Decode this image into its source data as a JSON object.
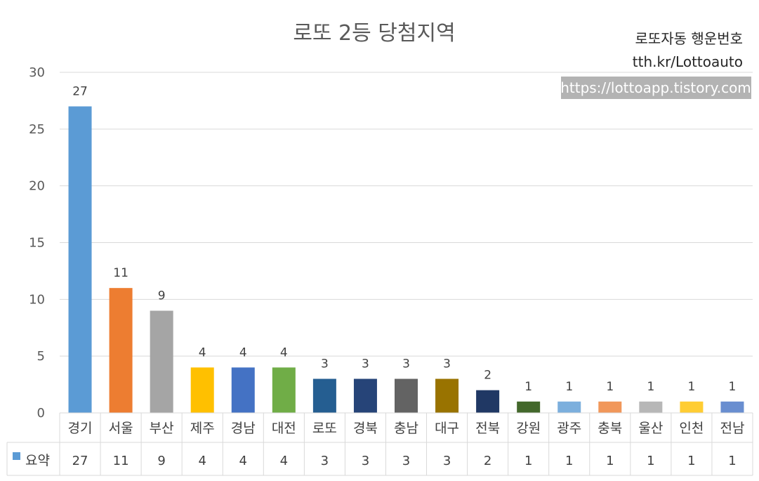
{
  "watermark": {
    "line1": "로또자동 행운번호",
    "line2": "tth.kr/Lottoauto",
    "url": "https://lottoapp.tistory.com"
  },
  "chart_data": {
    "type": "bar",
    "title": "로또 2등 당첨지역",
    "categories": [
      "경기",
      "서울",
      "부산",
      "제주",
      "경남",
      "대전",
      "로또",
      "경북",
      "충남",
      "대구",
      "전북",
      "강원",
      "광주",
      "충북",
      "울산",
      "인천",
      "전남"
    ],
    "series": [
      {
        "name": "요약",
        "values": [
          27,
          11,
          9,
          4,
          4,
          4,
          3,
          3,
          3,
          3,
          2,
          1,
          1,
          1,
          1,
          1,
          1
        ]
      }
    ],
    "bar_colors": [
      "#5B9BD5",
      "#ED7D31",
      "#A5A5A5",
      "#FFC000",
      "#4472C4",
      "#70AD47",
      "#255E91",
      "#264478",
      "#636363",
      "#997300",
      "#203864",
      "#43682B",
      "#7CAFDD",
      "#F1975A",
      "#B7B7B7",
      "#FFCD33",
      "#698ED0"
    ],
    "ylim": [
      0,
      30
    ],
    "yticks": [
      0,
      5,
      10,
      15,
      20,
      25,
      30
    ],
    "grid": true,
    "data_table": true,
    "legend_color": "#5B9BD5"
  }
}
